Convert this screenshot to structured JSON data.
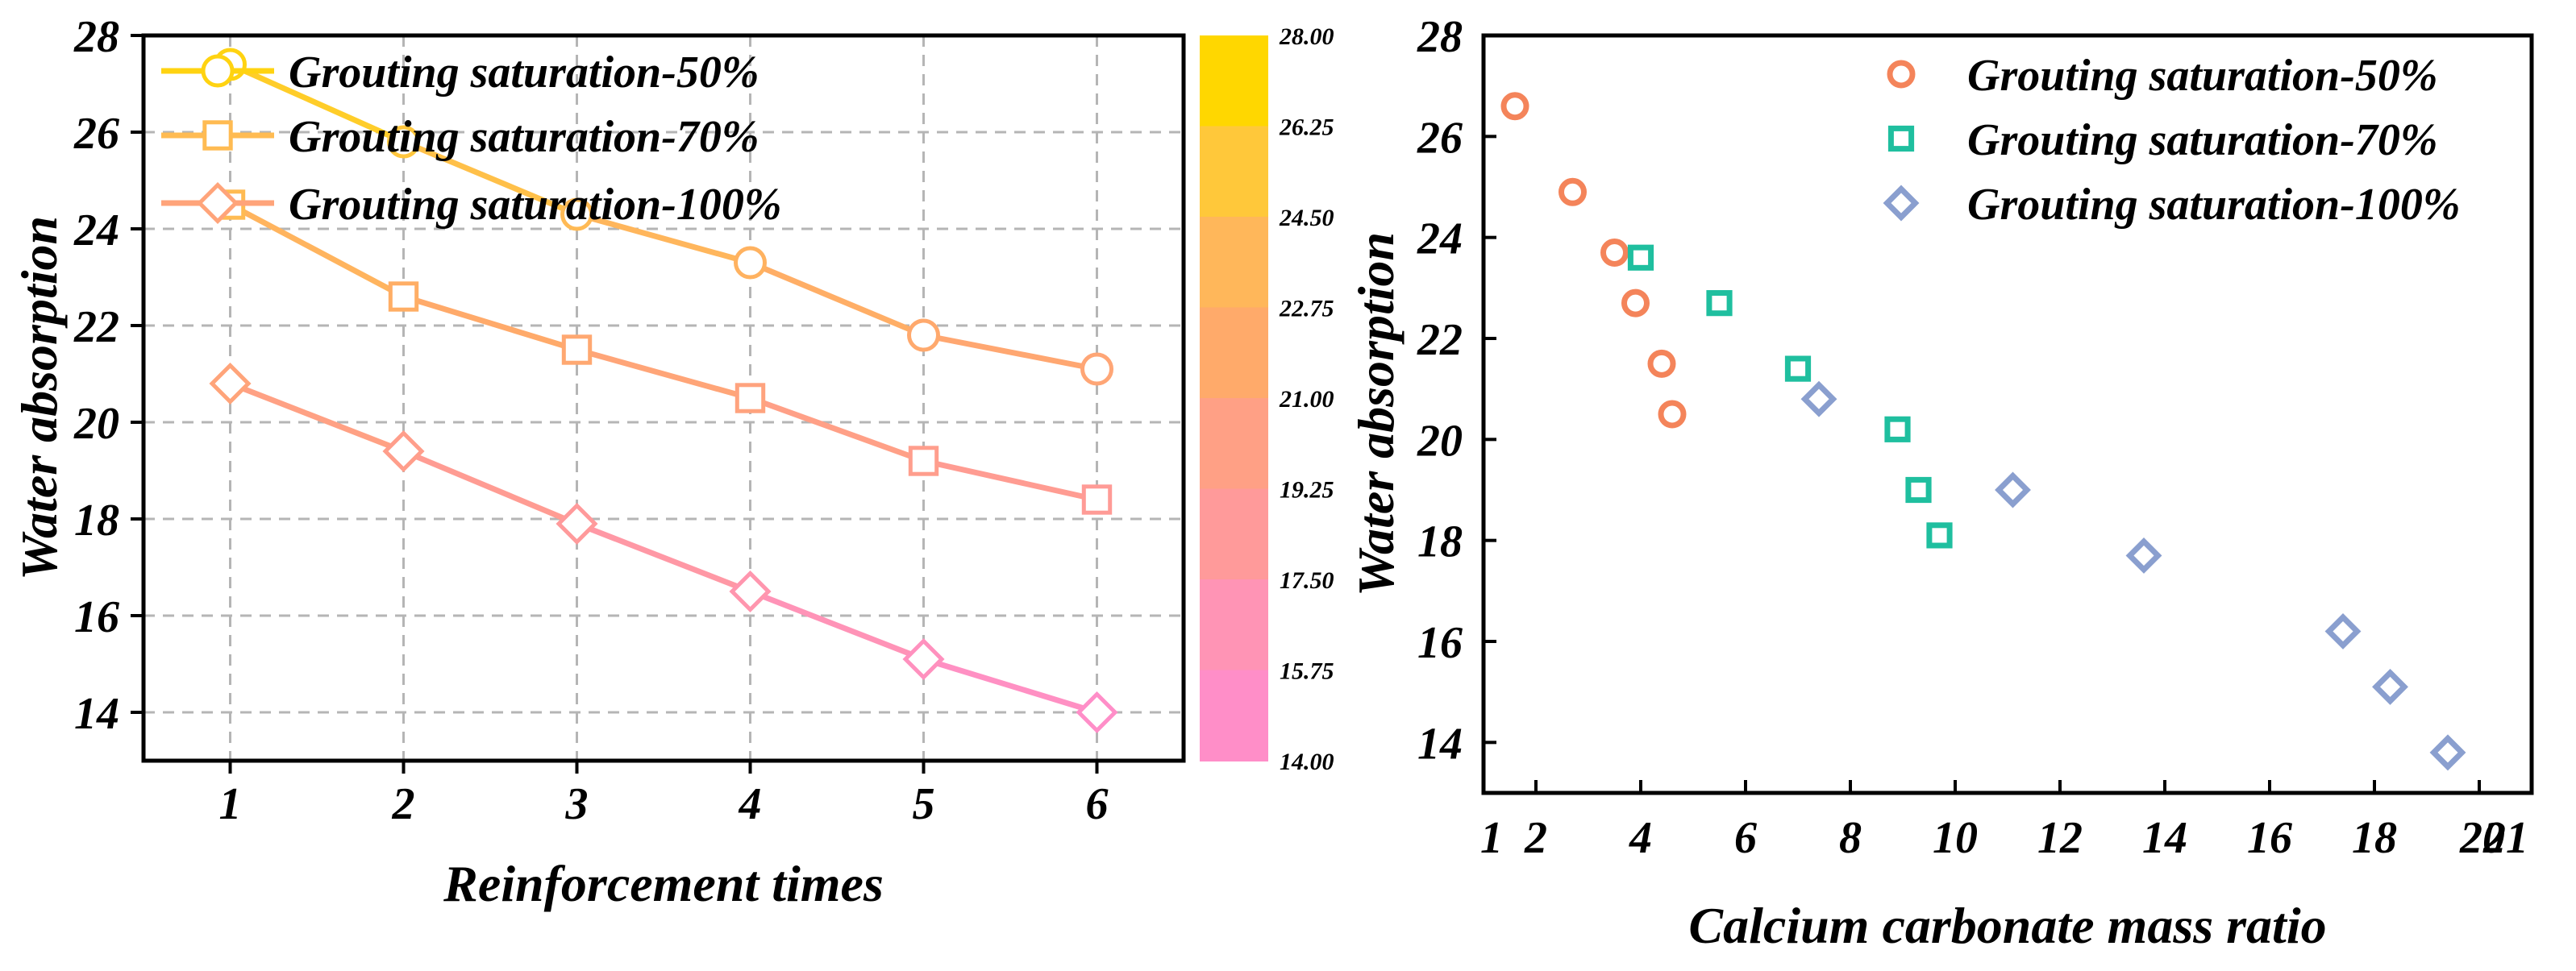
{
  "chart_data": [
    {
      "type": "line",
      "title": "",
      "xlabel": "Reinforcement times",
      "ylabel": "Water absorption",
      "xlim": [
        0.5,
        6.5
      ],
      "ylim": [
        13,
        28
      ],
      "xticks": [
        "1",
        "2",
        "3",
        "4",
        "5",
        "6"
      ],
      "yticks": [
        "14",
        "16",
        "18",
        "20",
        "22",
        "24",
        "26",
        "28"
      ],
      "grid": true,
      "legend": "top-left",
      "x": [
        1,
        2,
        3,
        4,
        5,
        6
      ],
      "series": [
        {
          "name": "Grouting saturation-50%",
          "marker": "circle",
          "values": [
            27.4,
            25.8,
            24.3,
            23.3,
            21.8,
            21.1
          ]
        },
        {
          "name": "Grouting saturation-70%",
          "marker": "square",
          "values": [
            24.5,
            22.6,
            21.5,
            20.5,
            19.2,
            18.4
          ]
        },
        {
          "name": "Grouting saturation-100%",
          "marker": "diamond",
          "values": [
            20.8,
            19.4,
            17.9,
            16.5,
            15.1,
            14.0
          ]
        }
      ],
      "colorbar": {
        "min": 14.0,
        "max": 28.0,
        "ticks": [
          "28.00",
          "26.25",
          "24.50",
          "22.75",
          "21.00",
          "19.25",
          "17.50",
          "15.75",
          "14.00"
        ],
        "colors": [
          "#ffd700",
          "#ffc83a",
          "#ffb75a",
          "#ffaa6a",
          "#ffa085",
          "#ff9a9a",
          "#ff94b5",
          "#ff8ec8"
        ]
      }
    },
    {
      "type": "scatter",
      "title": "",
      "xlabel": "Calcium carbonate mass ratio",
      "ylabel": "Water absorption",
      "xlim": [
        1,
        21
      ],
      "ylim": [
        13,
        28
      ],
      "xticks": [
        "1",
        "2",
        "4",
        "6",
        "8",
        "10",
        "12",
        "14",
        "16",
        "18",
        "20",
        "21"
      ],
      "yticks": [
        "14",
        "16",
        "18",
        "20",
        "22",
        "24",
        "26",
        "28"
      ],
      "grid": false,
      "legend": "top-right",
      "series": [
        {
          "name": "Grouting saturation-50%",
          "marker": "circle",
          "color": "#f4845a",
          "x": [
            1.6,
            2.7,
            3.5,
            3.9,
            4.4,
            4.6
          ],
          "y": [
            26.6,
            24.9,
            23.7,
            22.7,
            21.5,
            20.5
          ]
        },
        {
          "name": "Grouting saturation-70%",
          "marker": "square",
          "color": "#1fbf9f",
          "x": [
            4.0,
            5.5,
            7.0,
            8.9,
            9.3,
            9.7
          ],
          "y": [
            23.6,
            22.7,
            21.4,
            20.2,
            19.0,
            18.1
          ]
        },
        {
          "name": "Grouting saturation-100%",
          "marker": "diamond",
          "color": "#8a9fcf",
          "x": [
            7.4,
            11.1,
            13.6,
            17.4,
            18.3,
            19.4
          ],
          "y": [
            20.8,
            19.0,
            17.7,
            16.2,
            15.1,
            13.8
          ]
        }
      ]
    }
  ]
}
